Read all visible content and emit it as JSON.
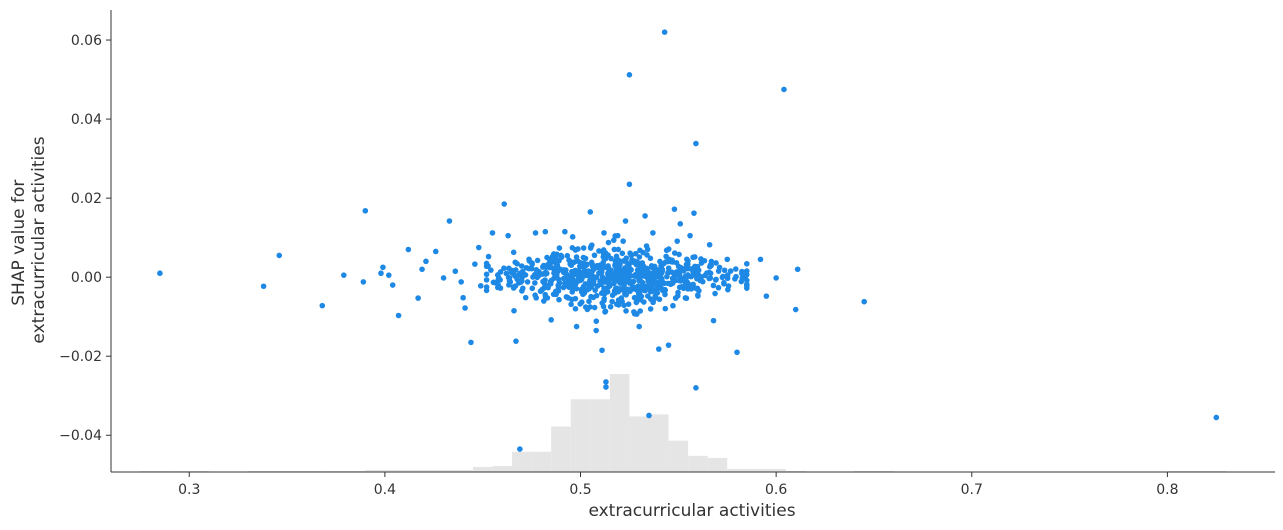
{
  "chart_data": {
    "type": "scatter",
    "xlabel": "extracurricular activities",
    "ylabel": [
      "SHAP value for",
      "extracurricular activities"
    ],
    "xlim": [
      0.26,
      0.855
    ],
    "ylim": [
      -0.0493,
      0.0676
    ],
    "xticks": [
      0.3,
      0.4,
      0.5,
      0.6,
      0.7,
      0.8
    ],
    "xtick_labels": [
      "0.3",
      "0.4",
      "0.5",
      "0.6",
      "0.7",
      "0.8"
    ],
    "yticks": [
      -0.04,
      -0.02,
      0.0,
      0.02,
      0.04,
      0.06
    ],
    "ytick_labels": [
      "−0.04",
      "−0.02",
      "0.00",
      "0.02",
      "0.04",
      "0.06"
    ],
    "grid": false,
    "point_color": "#1e88e5",
    "histogram_color": "#e5e5e5",
    "axis_color": "#333333",
    "points": [
      [
        0.285,
        0.001
      ],
      [
        0.338,
        -0.0023
      ],
      [
        0.346,
        0.0055
      ],
      [
        0.368,
        -0.0072
      ],
      [
        0.379,
        0.0005
      ],
      [
        0.39,
        0.0168
      ],
      [
        0.389,
        -0.0012
      ],
      [
        0.398,
        0.001
      ],
      [
        0.399,
        0.0025
      ],
      [
        0.402,
        0.0005
      ],
      [
        0.404,
        -0.002
      ],
      [
        0.407,
        -0.0097
      ],
      [
        0.412,
        0.007
      ],
      [
        0.417,
        -0.0053
      ],
      [
        0.419,
        0.002
      ],
      [
        0.421,
        0.004
      ],
      [
        0.426,
        0.0065
      ],
      [
        0.43,
        -0.0002
      ],
      [
        0.433,
        0.0142
      ],
      [
        0.436,
        0.0015
      ],
      [
        0.439,
        -0.0012
      ],
      [
        0.44,
        -0.0052
      ],
      [
        0.441,
        -0.0078
      ],
      [
        0.444,
        -0.0165
      ],
      [
        0.446,
        0.0033
      ],
      [
        0.448,
        0.0075
      ],
      [
        0.449,
        -0.0022
      ],
      [
        0.453,
        0.0052
      ],
      [
        0.455,
        0.0112
      ],
      [
        0.458,
        -0.0006
      ],
      [
        0.461,
        0.0185
      ],
      [
        0.463,
        0.0105
      ],
      [
        0.466,
        -0.0085
      ],
      [
        0.467,
        -0.0162
      ],
      [
        0.469,
        -0.0435
      ],
      [
        0.477,
        0.0112
      ],
      [
        0.482,
        0.0115
      ],
      [
        0.485,
        -0.0108
      ],
      [
        0.492,
        0.0115
      ],
      [
        0.496,
        0.0102
      ],
      [
        0.498,
        -0.0125
      ],
      [
        0.505,
        0.0165
      ],
      [
        0.508,
        -0.0135
      ],
      [
        0.511,
        -0.0185
      ],
      [
        0.512,
        0.0112
      ],
      [
        0.513,
        -0.0265
      ],
      [
        0.513,
        -0.0278
      ],
      [
        0.519,
        0.0105
      ],
      [
        0.523,
        0.0142
      ],
      [
        0.525,
        0.0235
      ],
      [
        0.525,
        0.0512
      ],
      [
        0.53,
        -0.0125
      ],
      [
        0.533,
        0.0155
      ],
      [
        0.535,
        -0.035
      ],
      [
        0.537,
        0.0112
      ],
      [
        0.54,
        -0.0182
      ],
      [
        0.543,
        0.062
      ],
      [
        0.545,
        -0.0172
      ],
      [
        0.548,
        0.0172
      ],
      [
        0.551,
        0.0135
      ],
      [
        0.556,
        0.0105
      ],
      [
        0.558,
        0.0162
      ],
      [
        0.559,
        0.0338
      ],
      [
        0.559,
        -0.028
      ],
      [
        0.566,
        0.0082
      ],
      [
        0.568,
        -0.011
      ],
      [
        0.575,
        0.0045
      ],
      [
        0.58,
        -0.019
      ],
      [
        0.585,
        -0.0018
      ],
      [
        0.592,
        0.0045
      ],
      [
        0.595,
        -0.0048
      ],
      [
        0.6,
        -0.0002
      ],
      [
        0.604,
        0.0475
      ],
      [
        0.61,
        -0.0082
      ],
      [
        0.611,
        0.002
      ],
      [
        0.645,
        -0.0062
      ],
      [
        0.825,
        -0.0355
      ]
    ],
    "cluster": {
      "center_x": 0.518,
      "spread_x": 0.028,
      "spread_y": 0.004,
      "count": 720
    },
    "histogram": {
      "edges": [
        0.26,
        0.275,
        0.29,
        0.31,
        0.33,
        0.35,
        0.37,
        0.39,
        0.405,
        0.425,
        0.445,
        0.455,
        0.465,
        0.475,
        0.485,
        0.495,
        0.505,
        0.515,
        0.525,
        0.535,
        0.545,
        0.555,
        0.565,
        0.575,
        0.585,
        0.595,
        0.605,
        0.615,
        0.64,
        0.66,
        0.7,
        0.8,
        0.83,
        0.855
      ],
      "counts": [
        0,
        1,
        1,
        0,
        1,
        1,
        1,
        2,
        2,
        2,
        5,
        6,
        20,
        20,
        45,
        72,
        72,
        97,
        55,
        57,
        31,
        16,
        14,
        3,
        3,
        3,
        1,
        0,
        1,
        0,
        0,
        1,
        0
      ],
      "max_count": 97
    }
  }
}
